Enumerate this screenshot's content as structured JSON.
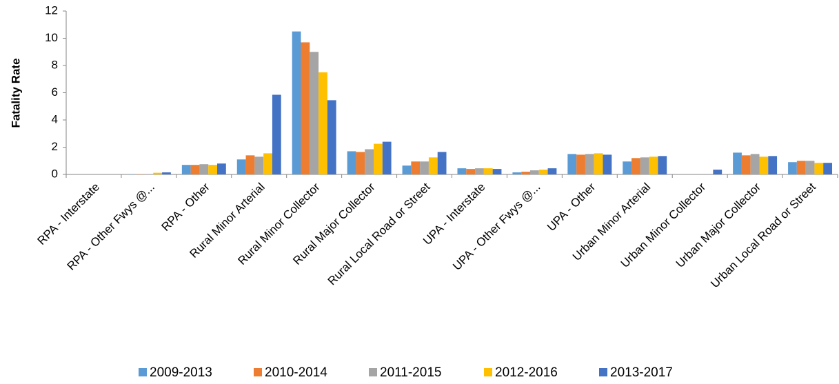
{
  "chart_data": {
    "type": "bar",
    "ylabel": "Fatality Rate",
    "categories": [
      "RPA - Interstate",
      "RPA - Other Fwys @...",
      "RPA - Other",
      "Rural Minor Arterial",
      "Rural Minor Collector",
      "Rural Major Collector",
      "Rural Local Road or Street",
      "UPA - Interstate",
      "UPA - Other Fwys @...",
      "UPA - Other",
      "Urban Minor Arterial",
      "Urban Minor Collector",
      "Urban Major Collector",
      "Urban Local Road or Street"
    ],
    "series": [
      {
        "name": "2009-2013",
        "color": "#5b9bd5",
        "values": [
          0,
          0.02,
          0.7,
          1.1,
          10.5,
          1.7,
          0.65,
          0.45,
          0.15,
          1.5,
          0.95,
          0,
          1.6,
          0.9
        ]
      },
      {
        "name": "2010-2014",
        "color": "#ed7d31",
        "values": [
          0,
          0.02,
          0.7,
          1.4,
          9.7,
          1.65,
          0.95,
          0.4,
          0.2,
          1.45,
          1.2,
          0,
          1.4,
          1.0
        ]
      },
      {
        "name": "2011-2015",
        "color": "#a5a5a5",
        "values": [
          0,
          0.03,
          0.75,
          1.3,
          9.0,
          1.85,
          0.95,
          0.45,
          0.3,
          1.5,
          1.25,
          0,
          1.5,
          1.0
        ]
      },
      {
        "name": "2012-2016",
        "color": "#ffc000",
        "values": [
          0,
          0.12,
          0.7,
          1.55,
          7.5,
          2.25,
          1.25,
          0.45,
          0.35,
          1.55,
          1.3,
          0,
          1.3,
          0.85
        ]
      },
      {
        "name": "2013-2017",
        "color": "#4472c4",
        "values": [
          0,
          0.15,
          0.8,
          5.85,
          5.45,
          2.4,
          1.65,
          0.4,
          0.45,
          1.45,
          1.35,
          0.35,
          1.35,
          0.85
        ]
      }
    ],
    "ylim": [
      0,
      12
    ],
    "yticks": [
      0,
      2,
      4,
      6,
      8,
      10,
      12
    ],
    "grid": false,
    "legend": "bottom"
  }
}
